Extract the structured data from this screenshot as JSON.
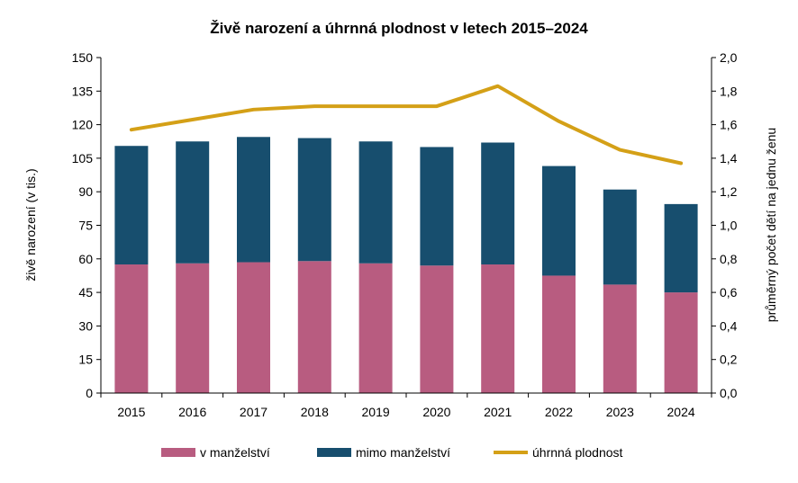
{
  "chart_data": {
    "type": "bar",
    "title": "Živě narození a úhrnná plodnost v letech 2015–2024",
    "ylabel": "živě narození (v tis.)",
    "y2label": "průměrný počet dětí na jednu ženu",
    "categories": [
      "2015",
      "2016",
      "2017",
      "2018",
      "2019",
      "2020",
      "2021",
      "2022",
      "2023",
      "2024"
    ],
    "ylim": [
      0,
      150
    ],
    "y2lim": [
      0,
      2
    ],
    "yticks": [
      "0",
      "15",
      "30",
      "45",
      "60",
      "75",
      "90",
      "105",
      "120",
      "135",
      "150"
    ],
    "y2ticks": [
      "0,0",
      "0,2",
      "0,4",
      "0,6",
      "0,8",
      "1,0",
      "1,2",
      "1,4",
      "1,6",
      "1,8",
      "2,0"
    ],
    "stacked": true,
    "series": [
      {
        "name": "v manželství",
        "kind": "bar",
        "color": "#b85c80",
        "values": [
          57.5,
          58.0,
          58.5,
          59.0,
          58.0,
          57.0,
          57.5,
          52.5,
          48.5,
          45.0
        ]
      },
      {
        "name": "mimo manželství",
        "kind": "bar",
        "color": "#174e6e",
        "values": [
          53.0,
          54.5,
          56.0,
          55.0,
          54.5,
          53.0,
          54.5,
          49.0,
          42.5,
          39.5
        ]
      },
      {
        "name": "úhrnná plodnost",
        "kind": "line",
        "axis": "y2",
        "color": "#d4a017",
        "values": [
          1.57,
          1.63,
          1.69,
          1.71,
          1.71,
          1.71,
          1.83,
          1.62,
          1.45,
          1.37
        ]
      }
    ],
    "legend_position": "bottom",
    "grid": false
  }
}
